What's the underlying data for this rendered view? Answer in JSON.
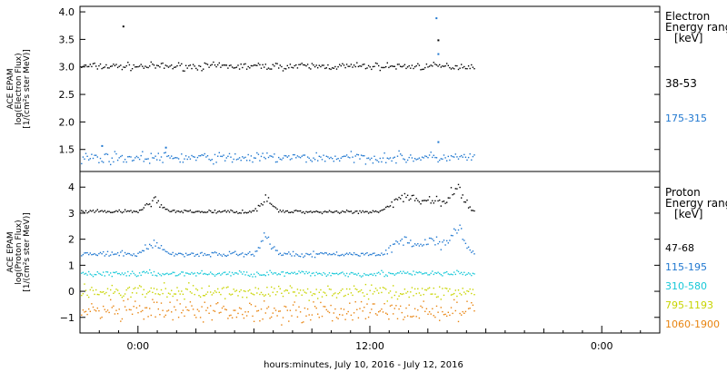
{
  "chart_data": [
    {
      "type": "scatter",
      "panel": "electron",
      "ylabel_lines": [
        "ACE EPAM",
        "log(Electron Flux)",
        "[1/(cm²s ster MeV)]"
      ],
      "ylim": [
        1.1,
        4.1
      ],
      "yticks": [
        1.5,
        2.0,
        2.5,
        3.0,
        3.5,
        4.0
      ],
      "ytick_labels": [
        "1.5",
        "2.0",
        "2.5",
        "3.0",
        "3.5",
        "4.0"
      ],
      "legend_title_lines": [
        "Electron",
        "Energy ranges",
        "[keV]"
      ],
      "series": [
        {
          "name": "38-53",
          "color": "#000000",
          "baseline": 3.02,
          "noise": 0.04,
          "spikes": [
            [
              2.2,
              3.75
            ],
            [
              18.5,
              3.5
            ]
          ]
        },
        {
          "name": "175-315",
          "color": "#1f77d0",
          "baseline": 1.36,
          "noise": 0.06,
          "spikes": [
            [
              18.4,
              3.9
            ],
            [
              18.5,
              3.25
            ],
            [
              18.5,
              1.65
            ],
            [
              1.1,
              1.58
            ],
            [
              4.4,
              1.55
            ]
          ]
        }
      ]
    },
    {
      "type": "scatter",
      "panel": "proton",
      "ylabel_lines": [
        "ACE EPAM",
        "log(Proton Flux)",
        "[1/(cm²s ster MeV)]"
      ],
      "ylim": [
        -1.6,
        4.6
      ],
      "yticks": [
        -1,
        0,
        1,
        2,
        3,
        4
      ],
      "ytick_labels": [
        "−1",
        "0",
        "1",
        "2",
        "3",
        "4"
      ],
      "legend_title_lines": [
        "Proton",
        "Energy ranges",
        "[keV]"
      ],
      "series": [
        {
          "name": "47-68",
          "color": "#000000",
          "baseline": 3.08,
          "noise": 0.04,
          "bumps": [
            [
              3.8,
              0.45,
              0.5
            ],
            [
              9.6,
              0.55,
              0.4
            ],
            [
              16.8,
              0.6,
              0.8
            ],
            [
              18.3,
              0.5,
              0.6
            ],
            [
              19.5,
              1.0,
              0.5
            ]
          ]
        },
        {
          "name": "115-195",
          "color": "#1f77d0",
          "baseline": 1.45,
          "noise": 0.06,
          "bumps": [
            [
              3.8,
              0.45,
              0.5
            ],
            [
              9.6,
              0.7,
              0.4
            ],
            [
              16.8,
              0.55,
              0.8
            ],
            [
              18.3,
              0.55,
              0.6
            ],
            [
              19.5,
              0.9,
              0.5
            ]
          ]
        },
        {
          "name": "310-580",
          "color": "#16c8d8",
          "baseline": 0.7,
          "noise": 0.07
        },
        {
          "name": "795-1193",
          "color": "#c8d400",
          "baseline": 0.0,
          "noise": 0.16
        },
        {
          "name": "1060-1900",
          "color": "#e88410",
          "baseline": -0.75,
          "noise": 0.25
        }
      ]
    }
  ],
  "x_axis": {
    "xlabel": "hours:minutes, July 10, 2016 - July 12, 2016",
    "ticks": [
      {
        "hour": 3.0,
        "label": "0:00"
      },
      {
        "hour": 15.0,
        "label": "12:00"
      },
      {
        "hour": 27.0,
        "label": "0:00"
      }
    ],
    "range_hours": [
      0,
      30
    ],
    "data_end_hour": 20.4
  }
}
